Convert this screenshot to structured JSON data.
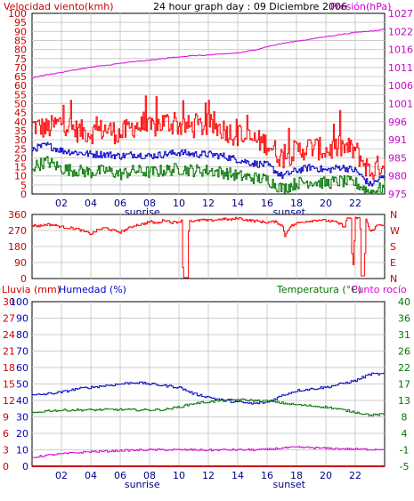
{
  "header": {
    "left_label": "Velocidad viento(kmh)",
    "title": "24 hour graph day : 09 Diciembre 2006",
    "right_label": "Presión(hPa)"
  },
  "colors": {
    "wind_gust": "#ff0000",
    "wind_avg": "#0000cc",
    "wind_min": "#007700",
    "pressure": "#dd00dd",
    "rain": "#cc0000",
    "humidity": "#0000cc",
    "temperature": "#007700",
    "dewpoint": "#dd00dd",
    "grid": "#cccccc",
    "axis_left": "#cc0000",
    "axis_right_top": "#cc00cc",
    "axis_right_bottom": "#007700"
  },
  "chart_data": [
    {
      "type": "line",
      "name": "wind-pressure",
      "x_ticks": [
        "02",
        "04",
        "06",
        "08",
        "10",
        "12",
        "14",
        "16",
        "18",
        "20",
        "22"
      ],
      "x_sublabels": [
        {
          "hour": 7.5,
          "text": "sunrise"
        },
        {
          "hour": 17.5,
          "text": "sunset"
        }
      ],
      "xlim": [
        0,
        24
      ],
      "y_left": {
        "label": "Velocidad viento(kmh)",
        "ticks": [
          0,
          5,
          10,
          15,
          20,
          25,
          30,
          35,
          40,
          45,
          50,
          55,
          60,
          65,
          70,
          75,
          80,
          85,
          90,
          95,
          100
        ],
        "lim": [
          0,
          100
        ]
      },
      "y_right": {
        "label": "Presión(hPa)",
        "ticks": [
          975,
          980,
          985,
          991,
          996,
          1001,
          1006,
          1011,
          1016,
          1022,
          1027
        ],
        "lim": [
          975,
          1027
        ]
      },
      "series": [
        {
          "key": "gust",
          "axis": "left",
          "x": [
            0,
            1,
            2,
            3,
            4,
            5,
            6,
            7,
            8,
            9,
            10,
            11,
            12,
            13,
            14,
            15,
            16,
            17,
            18,
            19,
            20,
            21,
            22,
            23,
            24
          ],
          "values": [
            38,
            36,
            40,
            35,
            34,
            36,
            33,
            38,
            36,
            40,
            38,
            37,
            38,
            36,
            32,
            30,
            28,
            20,
            24,
            26,
            24,
            26,
            24,
            12,
            18
          ]
        },
        {
          "key": "average",
          "axis": "left",
          "x": [
            0,
            1,
            2,
            3,
            4,
            5,
            6,
            7,
            8,
            9,
            10,
            11,
            12,
            13,
            14,
            15,
            16,
            17,
            18,
            19,
            20,
            21,
            22,
            23,
            24
          ],
          "values": [
            25,
            27,
            24,
            23,
            22,
            22,
            21,
            22,
            21,
            22,
            23,
            22,
            22,
            21,
            19,
            17,
            16,
            10,
            13,
            15,
            13,
            15,
            13,
            5,
            10
          ]
        },
        {
          "key": "minimum",
          "axis": "left",
          "x": [
            0,
            1,
            2,
            3,
            4,
            5,
            6,
            7,
            8,
            9,
            10,
            11,
            12,
            13,
            14,
            15,
            16,
            17,
            18,
            19,
            20,
            21,
            22,
            23,
            24
          ],
          "values": [
            15,
            18,
            14,
            13,
            12,
            13,
            11,
            13,
            12,
            13,
            14,
            13,
            13,
            12,
            10,
            9,
            8,
            3,
            6,
            7,
            6,
            7,
            6,
            1,
            4
          ]
        },
        {
          "key": "pressure",
          "axis": "right",
          "x": [
            0,
            1,
            2,
            3,
            4,
            5,
            6,
            7,
            8,
            9,
            10,
            11,
            12,
            13,
            14,
            15,
            16,
            17,
            18,
            19,
            20,
            21,
            22,
            23,
            24
          ],
          "values": [
            1008.5,
            1009.3,
            1010.0,
            1010.8,
            1011.5,
            1012.0,
            1012.6,
            1013.1,
            1013.5,
            1014.0,
            1014.5,
            1014.8,
            1015.0,
            1015.3,
            1015.6,
            1016.3,
            1017.4,
            1018.3,
            1019.0,
            1019.6,
            1020.3,
            1020.9,
            1021.5,
            1021.9,
            1022.4
          ]
        }
      ]
    },
    {
      "type": "line",
      "name": "wind-direction",
      "xlim": [
        0,
        24
      ],
      "y_left": {
        "ticks": [
          0,
          90,
          180,
          270,
          360
        ],
        "lim": [
          0,
          360
        ]
      },
      "y_right": {
        "ticks": [
          "N",
          "W",
          "S",
          "E",
          "N"
        ]
      },
      "series": [
        {
          "key": "direction",
          "axis": "left",
          "x": [
            0,
            0.5,
            1,
            1.5,
            2,
            2.5,
            3,
            3.5,
            4,
            4.5,
            5,
            5.5,
            6,
            6.5,
            7,
            7.5,
            8,
            8.5,
            9,
            9.5,
            10,
            10.2,
            10.25,
            10.6,
            10.65,
            11,
            11.5,
            12,
            12.5,
            13,
            13.5,
            14,
            14.5,
            15,
            15.5,
            16,
            16.5,
            17,
            17.2,
            17.5,
            18,
            18.5,
            19,
            19.5,
            20,
            20.5,
            21,
            21.3,
            21.4,
            21.7,
            21.8,
            22,
            22.3,
            22.4,
            22.6,
            22.7,
            23,
            23.5,
            24
          ],
          "values": [
            300,
            295,
            305,
            300,
            290,
            285,
            280,
            265,
            250,
            275,
            285,
            270,
            260,
            280,
            300,
            305,
            320,
            310,
            330,
            315,
            320,
            325,
            5,
            5,
            330,
            320,
            330,
            325,
            330,
            335,
            330,
            340,
            330,
            325,
            320,
            315,
            320,
            300,
            240,
            290,
            310,
            320,
            325,
            330,
            325,
            320,
            305,
            290,
            340,
            340,
            5,
            340,
            340,
            15,
            15,
            340,
            260,
            300,
            305
          ]
        }
      ]
    },
    {
      "type": "line",
      "name": "rain-humidity-temperature",
      "xlim": [
        0,
        24
      ],
      "y_left_outer": {
        "label": "Lluvia (mm)",
        "ticks": [
          0,
          3,
          6,
          9,
          12,
          15,
          18,
          21,
          24,
          27,
          30
        ],
        "lim": [
          0,
          30
        ]
      },
      "y_left_inner": {
        "label": "Humedad (%)",
        "ticks": [
          0,
          10,
          20,
          30,
          40,
          50,
          60,
          70,
          80,
          90,
          100
        ],
        "lim": [
          0,
          100
        ]
      },
      "y_right": {
        "label": "Temperatura (°C)",
        "label2": "Punto rocío",
        "ticks": [
          -5,
          -1,
          4,
          8,
          13,
          17,
          22,
          26,
          31,
          36,
          40
        ],
        "lim": [
          -5,
          40
        ]
      },
      "series": [
        {
          "key": "humidity",
          "axis": "inner",
          "x": [
            0,
            1,
            2,
            3,
            4,
            5,
            6,
            7,
            8,
            9,
            10,
            11,
            12,
            13,
            14,
            15,
            16,
            17,
            18,
            19,
            20,
            21,
            22,
            23,
            24
          ],
          "values": [
            43,
            44,
            45,
            47,
            48,
            49,
            50,
            51,
            50,
            49,
            48,
            44,
            42,
            40,
            39,
            38,
            39,
            43,
            46,
            47,
            48,
            50,
            52,
            56,
            56
          ]
        },
        {
          "key": "temperature",
          "axis": "right",
          "x": [
            0,
            1,
            2,
            3,
            4,
            5,
            6,
            7,
            8,
            9,
            10,
            11,
            12,
            13,
            14,
            15,
            16,
            17,
            18,
            19,
            20,
            21,
            22,
            23,
            24
          ],
          "values": [
            9.5,
            10.2,
            10.3,
            10.4,
            10.4,
            10.5,
            10.5,
            10.4,
            10.4,
            10.5,
            11.2,
            12.2,
            12.6,
            13.0,
            13.2,
            13.0,
            12.8,
            12.3,
            11.8,
            11.5,
            11.2,
            10.5,
            9.8,
            9.0,
            9.2
          ]
        },
        {
          "key": "dewpoint",
          "axis": "right",
          "x": [
            0,
            1,
            2,
            3,
            4,
            5,
            6,
            7,
            8,
            9,
            10,
            11,
            12,
            13,
            14,
            15,
            16,
            17,
            18,
            19,
            20,
            21,
            22,
            23,
            24
          ],
          "values": [
            -2.6,
            -2.0,
            -1.6,
            -1.3,
            -1.0,
            -0.9,
            -0.7,
            -0.6,
            -0.5,
            -0.5,
            -0.5,
            -0.5,
            -0.6,
            -0.5,
            -0.5,
            -0.5,
            -0.4,
            0.0,
            0.2,
            0.1,
            -0.1,
            -0.2,
            -0.3,
            -0.4,
            -0.3
          ]
        },
        {
          "key": "rain",
          "axis": "outer",
          "x": [
            0,
            24
          ],
          "values": [
            0,
            0
          ]
        }
      ]
    }
  ]
}
